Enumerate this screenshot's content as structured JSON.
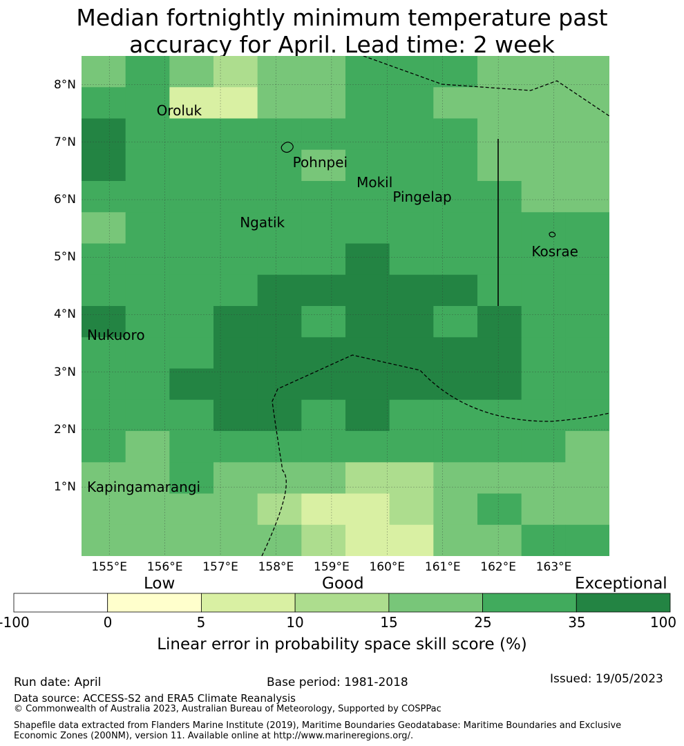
{
  "title_line1": "Median fortnightly minimum temperature past",
  "title_line2": "accuracy for April. Lead time: 2 week",
  "colors": {
    "c0": "#ffffff",
    "c1": "#ffffcc",
    "c2": "#d9f0a3",
    "c3": "#addd8e",
    "c4": "#78c679",
    "c5": "#41ab5d",
    "c6": "#238443"
  },
  "map": {
    "lon_range": [
      154.5,
      164.0
    ],
    "lat_range": [
      -0.2,
      8.5
    ],
    "lat_ticks": [
      {
        "value": 8,
        "label": "8°N"
      },
      {
        "value": 7,
        "label": "7°N"
      },
      {
        "value": 6,
        "label": "6°N"
      },
      {
        "value": 5,
        "label": "5°N"
      },
      {
        "value": 4,
        "label": "4°N"
      },
      {
        "value": 3,
        "label": "3°N"
      },
      {
        "value": 2,
        "label": "2°N"
      },
      {
        "value": 1,
        "label": "1°N"
      }
    ],
    "lon_ticks": [
      {
        "value": 155,
        "label": "155°E"
      },
      {
        "value": 156,
        "label": "156°E"
      },
      {
        "value": 157,
        "label": "157°E"
      },
      {
        "value": 158,
        "label": "158°E"
      },
      {
        "value": 159,
        "label": "159°E"
      },
      {
        "value": 160,
        "label": "160°E"
      },
      {
        "value": 161,
        "label": "161°E"
      },
      {
        "value": 162,
        "label": "162°E"
      },
      {
        "value": 163,
        "label": "163°E"
      }
    ],
    "places": [
      {
        "name": "Oroluk",
        "lon": 155.85,
        "lat": 7.55
      },
      {
        "name": "Pohnpei",
        "lon": 158.3,
        "lat": 6.65
      },
      {
        "name": "Mokil",
        "lon": 159.45,
        "lat": 6.3
      },
      {
        "name": "Pingelap",
        "lon": 160.1,
        "lat": 6.05
      },
      {
        "name": "Ngatik",
        "lon": 157.35,
        "lat": 5.6
      },
      {
        "name": "Kosrae",
        "lon": 162.6,
        "lat": 5.1
      },
      {
        "name": "Nukuoro",
        "lon": 154.6,
        "lat": 3.65
      },
      {
        "name": "Kapingamarangi",
        "lon": 154.6,
        "lat": 1.0
      }
    ],
    "grid_rows_north_to_south": [
      [
        4,
        5,
        4,
        3,
        4,
        4,
        5,
        5,
        5,
        4,
        4,
        4
      ],
      [
        5,
        5,
        2,
        2,
        4,
        4,
        5,
        5,
        4,
        4,
        4,
        4
      ],
      [
        6,
        5,
        5,
        5,
        5,
        5,
        5,
        5,
        5,
        4,
        4,
        4
      ],
      [
        6,
        5,
        5,
        5,
        5,
        4,
        5,
        5,
        5,
        4,
        4,
        4
      ],
      [
        5,
        5,
        5,
        5,
        5,
        5,
        5,
        5,
        5,
        5,
        4,
        4
      ],
      [
        4,
        5,
        5,
        5,
        5,
        5,
        5,
        5,
        5,
        5,
        5,
        5
      ],
      [
        5,
        5,
        5,
        5,
        5,
        5,
        6,
        5,
        5,
        5,
        5,
        5
      ],
      [
        5,
        5,
        5,
        5,
        6,
        6,
        6,
        6,
        6,
        5,
        5,
        5
      ],
      [
        6,
        5,
        5,
        6,
        6,
        5,
        6,
        6,
        5,
        6,
        5,
        5
      ],
      [
        5,
        5,
        5,
        6,
        6,
        6,
        6,
        6,
        6,
        6,
        5,
        5
      ],
      [
        5,
        5,
        6,
        6,
        6,
        6,
        6,
        6,
        6,
        6,
        5,
        5
      ],
      [
        5,
        5,
        5,
        6,
        6,
        5,
        6,
        5,
        5,
        5,
        5,
        5
      ],
      [
        5,
        4,
        5,
        5,
        5,
        5,
        5,
        5,
        5,
        5,
        5,
        4
      ],
      [
        4,
        4,
        5,
        4,
        4,
        4,
        3,
        3,
        4,
        4,
        4,
        4
      ],
      [
        4,
        4,
        4,
        4,
        3,
        2,
        2,
        3,
        4,
        5,
        4,
        4
      ],
      [
        4,
        4,
        4,
        4,
        4,
        3,
        2,
        2,
        4,
        4,
        5,
        5
      ]
    ]
  },
  "colorbar": {
    "words": [
      "Low",
      "Good",
      "Exceptional"
    ],
    "ticks": [
      "-100",
      "0",
      "5",
      "10",
      "15",
      "25",
      "35",
      "100"
    ],
    "title": "Linear error in probability space skill score (%)"
  },
  "footer": {
    "run_date": "Run date: April",
    "base_period": "Base period: 1981-2018",
    "issued": "Issued: 19/05/2023",
    "data_source": "Data source: ACCESS-S2 and ERA5 Climate Reanalysis",
    "copyright": "© Commonwealth of Australia 2023, Australian Bureau of Meteorology, Supported by COSPPac",
    "shapefile": "Shapefile data extracted from Flanders Marine Institute (2019), Maritime Boundaries Geodatabase: Maritime Boundaries and Exclusive Economic Zones (200NM), version 11. Available online at http://www.marineregions.org/."
  }
}
